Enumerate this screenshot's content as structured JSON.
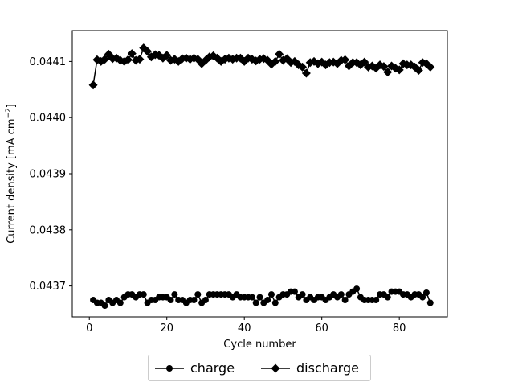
{
  "chart_data": {
    "type": "line",
    "title": "",
    "xlabel": "Cycle number",
    "ylabel": "Current density [mA cm^-2]",
    "ylabel_main": "Current density [mA cm",
    "ylabel_sup": "−2",
    "ylabel_tail": "]",
    "xlim": [
      -4.4,
      92.4
    ],
    "ylim": [
      0.043645,
      0.044155
    ],
    "xticks": [
      0,
      20,
      40,
      60,
      80
    ],
    "yticks": [
      0.0437,
      0.0438,
      0.0439,
      0.044,
      0.0441
    ],
    "ytick_labels": [
      "0.0437",
      "0.0438",
      "0.0439",
      "0.0440",
      "0.0441"
    ],
    "grid": false,
    "legend_position": "below the plot, centered",
    "color": "#000000",
    "series": [
      {
        "name": "charge",
        "marker": "circle",
        "x": [
          1,
          2,
          3,
          4,
          5,
          6,
          7,
          8,
          9,
          10,
          11,
          12,
          13,
          14,
          15,
          16,
          17,
          18,
          19,
          20,
          21,
          22,
          23,
          24,
          25,
          26,
          27,
          28,
          29,
          30,
          31,
          32,
          33,
          34,
          35,
          36,
          37,
          38,
          39,
          40,
          41,
          42,
          43,
          44,
          45,
          46,
          47,
          48,
          49,
          50,
          51,
          52,
          53,
          54,
          55,
          56,
          57,
          58,
          59,
          60,
          61,
          62,
          63,
          64,
          65,
          66,
          67,
          68,
          69,
          70,
          71,
          72,
          73,
          74,
          75,
          76,
          77,
          78,
          79,
          80,
          81,
          82,
          83,
          84,
          85,
          86,
          87,
          88
        ],
        "values": [
          0.043675,
          0.04367,
          0.04367,
          0.043665,
          0.043675,
          0.04367,
          0.043675,
          0.04367,
          0.04368,
          0.043685,
          0.043685,
          0.04368,
          0.043685,
          0.043685,
          0.04367,
          0.043675,
          0.043675,
          0.04368,
          0.04368,
          0.04368,
          0.043675,
          0.043685,
          0.043675,
          0.043675,
          0.04367,
          0.043675,
          0.043675,
          0.043685,
          0.04367,
          0.043675,
          0.043685,
          0.043685,
          0.043685,
          0.043685,
          0.043685,
          0.043685,
          0.04368,
          0.043685,
          0.04368,
          0.04368,
          0.04368,
          0.04368,
          0.04367,
          0.04368,
          0.04367,
          0.043675,
          0.043685,
          0.04367,
          0.04368,
          0.043685,
          0.043685,
          0.04369,
          0.04369,
          0.04368,
          0.043685,
          0.043675,
          0.04368,
          0.043675,
          0.04368,
          0.04368,
          0.043675,
          0.04368,
          0.043685,
          0.04368,
          0.043685,
          0.043675,
          0.043685,
          0.04369,
          0.043695,
          0.04368,
          0.043675,
          0.043675,
          0.043675,
          0.043675,
          0.043685,
          0.043685,
          0.04368,
          0.04369,
          0.04369,
          0.04369,
          0.043685,
          0.043685,
          0.04368,
          0.043685,
          0.043685,
          0.04368,
          0.043688,
          0.04367
        ]
      },
      {
        "name": "discharge",
        "marker": "diamond",
        "x": [
          1,
          2,
          3,
          4,
          5,
          6,
          7,
          8,
          9,
          10,
          11,
          12,
          13,
          14,
          15,
          16,
          17,
          18,
          19,
          20,
          21,
          22,
          23,
          24,
          25,
          26,
          27,
          28,
          29,
          30,
          31,
          32,
          33,
          34,
          35,
          36,
          37,
          38,
          39,
          40,
          41,
          42,
          43,
          44,
          45,
          46,
          47,
          48,
          49,
          50,
          51,
          52,
          53,
          54,
          55,
          56,
          57,
          58,
          59,
          60,
          61,
          62,
          63,
          64,
          65,
          66,
          67,
          68,
          69,
          70,
          71,
          72,
          73,
          74,
          75,
          76,
          77,
          78,
          79,
          80,
          81,
          82,
          83,
          84,
          85,
          86,
          87,
          88
        ],
        "values": [
          0.044058,
          0.044103,
          0.0441,
          0.044104,
          0.044113,
          0.044105,
          0.044106,
          0.044102,
          0.0441,
          0.044103,
          0.044114,
          0.044102,
          0.044104,
          0.044124,
          0.044118,
          0.044108,
          0.044112,
          0.044111,
          0.044106,
          0.044111,
          0.044102,
          0.044104,
          0.0441,
          0.044105,
          0.044106,
          0.044104,
          0.044106,
          0.044104,
          0.044096,
          0.044102,
          0.044108,
          0.04411,
          0.044106,
          0.0441,
          0.044104,
          0.044106,
          0.044104,
          0.044106,
          0.044106,
          0.0441,
          0.044106,
          0.044104,
          0.044101,
          0.044104,
          0.044105,
          0.044102,
          0.044095,
          0.0441,
          0.044113,
          0.044102,
          0.044105,
          0.044098,
          0.0441,
          0.044094,
          0.04409,
          0.044079,
          0.044098,
          0.0441,
          0.044096,
          0.044099,
          0.044094,
          0.044098,
          0.044099,
          0.044096,
          0.044102,
          0.044103,
          0.044092,
          0.044098,
          0.044098,
          0.044094,
          0.044099,
          0.04409,
          0.044092,
          0.044088,
          0.044094,
          0.044091,
          0.044081,
          0.044092,
          0.044088,
          0.044085,
          0.044096,
          0.044094,
          0.044094,
          0.04409,
          0.044084,
          0.044098,
          0.044096,
          0.04409
        ]
      }
    ]
  }
}
